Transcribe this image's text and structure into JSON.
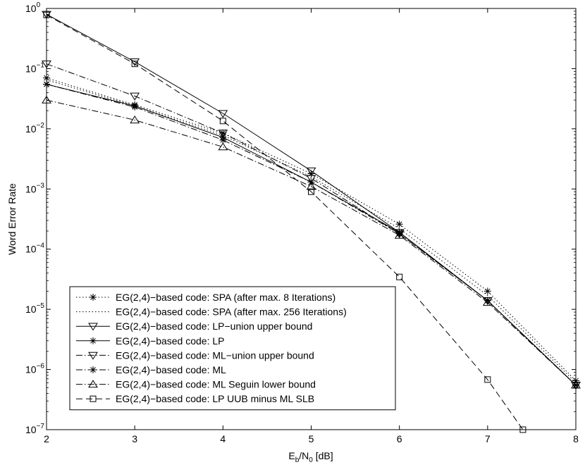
{
  "chart_data": {
    "type": "line",
    "xlabel": {
      "main": "E",
      "sub1": "b",
      "mid": "/N",
      "sub2": "0",
      "tail": " [dB]"
    },
    "ylabel": "Word Error Rate",
    "xlim": [
      2,
      8
    ],
    "ylim": [
      1e-07,
      1
    ],
    "yscale": "log",
    "grid": false,
    "legend_position": "bottom-left",
    "x_ticks": [
      "2",
      "3",
      "4",
      "5",
      "6",
      "7",
      "8"
    ],
    "y_ticks": [
      {
        "base": "10",
        "exp": "0",
        "value": 1
      },
      {
        "base": "10",
        "exp": "−1",
        "value": 0.1
      },
      {
        "base": "10",
        "exp": "−2",
        "value": 0.01
      },
      {
        "base": "10",
        "exp": "−3",
        "value": 0.001
      },
      {
        "base": "10",
        "exp": "−4",
        "value": 0.0001
      },
      {
        "base": "10",
        "exp": "−5",
        "value": 1e-05
      },
      {
        "base": "10",
        "exp": "−6",
        "value": 1e-06
      },
      {
        "base": "10",
        "exp": "−7",
        "value": 1e-07
      }
    ],
    "series": [
      {
        "name": "EG(2,4)−based code: SPA (after max. 8 Iterations)",
        "dash": "dot",
        "marker": "star",
        "x": [
          2,
          3,
          4,
          5,
          6,
          7,
          8
        ],
        "y": [
          0.07,
          0.025,
          0.0085,
          0.0018,
          0.00026,
          2e-05,
          6.5e-07
        ]
      },
      {
        "name": "EG(2,4)−based code: SPA (after max. 256 Iterations)",
        "dash": "dot",
        "marker": "none",
        "x": [
          2,
          3,
          4,
          5,
          6,
          7,
          8
        ],
        "y": [
          0.065,
          0.024,
          0.0078,
          0.0016,
          0.00022,
          1.7e-05,
          6e-07
        ]
      },
      {
        "name": "EG(2,4)−based code: LP−union upper bound",
        "dash": "solid",
        "marker": "triangle-down",
        "x": [
          2,
          3,
          4,
          5,
          6,
          7,
          8
        ],
        "y": [
          0.8,
          0.13,
          0.018,
          0.002,
          0.00019,
          1.4e-05,
          5.5e-07
        ]
      },
      {
        "name": "EG(2,4)−based code: LP",
        "dash": "solid",
        "marker": "star",
        "x": [
          2,
          3,
          4,
          5,
          6,
          7,
          8
        ],
        "y": [
          0.055,
          0.024,
          0.0072,
          0.0013,
          0.00019,
          1.4e-05,
          5.5e-07
        ]
      },
      {
        "name": "EG(2,4)−based code: ML−union upper bound",
        "dash": "dashdot",
        "marker": "triangle-down",
        "x": [
          2,
          3,
          4,
          5,
          6,
          7,
          8
        ],
        "y": [
          0.12,
          0.035,
          0.0085,
          0.0015,
          0.00018,
          1.4e-05,
          5.5e-07
        ]
      },
      {
        "name": "EG(2,4)−based code: ML",
        "dash": "dashdot",
        "marker": "star",
        "x": [
          2,
          3,
          4,
          5,
          6,
          7,
          8
        ],
        "y": [
          0.055,
          0.023,
          0.0065,
          0.0013,
          0.00018,
          1.4e-05,
          5.5e-07
        ]
      },
      {
        "name": "EG(2,4)−based code: ML Seguin lower bound",
        "dash": "dashdot",
        "marker": "triangle-up",
        "x": [
          2,
          3,
          4,
          5,
          6,
          7,
          8
        ],
        "y": [
          0.03,
          0.014,
          0.005,
          0.0011,
          0.00017,
          1.3e-05,
          5.5e-07
        ]
      },
      {
        "name": "EG(2,4)−based code: LP UUB minus ML SLB",
        "dash": "dash",
        "marker": "square",
        "x": [
          2,
          3,
          4,
          5,
          6,
          7,
          7.4
        ],
        "y": [
          0.78,
          0.12,
          0.0135,
          0.0009,
          3.45e-05,
          6.8e-07,
          1e-07
        ]
      }
    ]
  }
}
